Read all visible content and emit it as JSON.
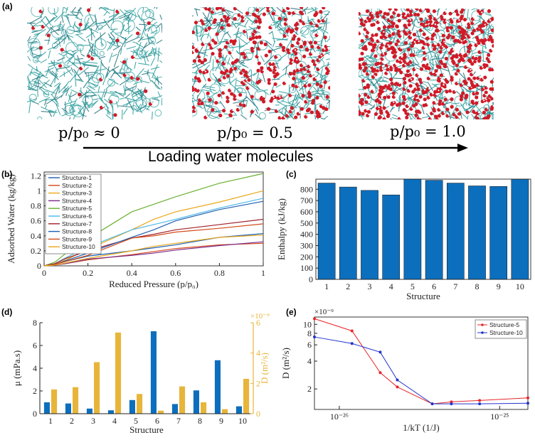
{
  "figure": {
    "panel_a": {
      "label": "(a)",
      "snapshots": [
        {
          "label": "p/p₀ ≈ 0",
          "water_level": 0.04
        },
        {
          "label": "p/p₀  = 0.5",
          "water_level": 0.45
        },
        {
          "label": "p/p₀  = 1.0",
          "water_level": 0.85
        }
      ],
      "arrow_label": "Loading water molecules"
    },
    "colors": {
      "framework": "#2a9d9c",
      "water_o": "#d01a28",
      "water_h": "#f3f3f3",
      "bar_blue": "#0c6fbd",
      "bar_gold": "#e8b53a",
      "red": "#e8262a",
      "blue": "#2233cc"
    }
  },
  "chart_data": [
    {
      "panel": "(b)",
      "type": "line",
      "xlabel": "Reduced Pressure (p/p₀)",
      "ylabel": "Adsorbed Water (kg/kg)",
      "xlim": [
        0,
        1
      ],
      "ylim": [
        0,
        1.25
      ],
      "xticks": [
        "0",
        "0.2",
        "0.4",
        "0.6",
        "0.8",
        "1"
      ],
      "yticks": [
        "0",
        "0.2",
        "0.4",
        "0.6",
        "0.8",
        "1",
        "1.2"
      ],
      "legend_position": "top-left",
      "x": [
        0,
        0.05,
        0.1,
        0.2,
        0.4,
        0.5,
        0.6,
        0.8,
        1.0
      ],
      "series": [
        {
          "name": "Structure-1",
          "color": "#1f5fb0",
          "values": [
            0,
            0.02,
            0.06,
            0.13,
            0.2,
            0.24,
            0.28,
            0.38,
            0.43
          ]
        },
        {
          "name": "Structure-2",
          "color": "#d24a1a",
          "values": [
            0,
            0.01,
            0.03,
            0.08,
            0.15,
            0.19,
            0.23,
            0.28,
            0.3
          ]
        },
        {
          "name": "Structure-3",
          "color": "#e8a81a",
          "values": [
            0,
            0.02,
            0.08,
            0.22,
            0.48,
            0.62,
            0.72,
            0.85,
            1.0
          ]
        },
        {
          "name": "Structure-4",
          "color": "#7b2a8b",
          "values": [
            0,
            0.01,
            0.03,
            0.09,
            0.14,
            0.17,
            0.21,
            0.27,
            0.32
          ]
        },
        {
          "name": "Structure-5",
          "color": "#6ab030",
          "values": [
            0,
            0.05,
            0.17,
            0.36,
            0.72,
            0.82,
            0.92,
            1.1,
            1.23
          ]
        },
        {
          "name": "Structure-6",
          "color": "#4db8e8",
          "values": [
            0,
            0.03,
            0.11,
            0.25,
            0.48,
            0.55,
            0.62,
            0.77,
            0.9
          ]
        },
        {
          "name": "Structure-7",
          "color": "#a0202a",
          "values": [
            0,
            0.03,
            0.1,
            0.2,
            0.37,
            0.42,
            0.48,
            0.55,
            0.62
          ]
        },
        {
          "name": "Structure-8",
          "color": "#1f5fb0",
          "values": [
            0,
            0.02,
            0.07,
            0.17,
            0.38,
            0.48,
            0.6,
            0.75,
            0.86
          ]
        },
        {
          "name": "Structure-9",
          "color": "#d24a1a",
          "values": [
            0,
            0.02,
            0.06,
            0.14,
            0.37,
            0.4,
            0.45,
            0.5,
            0.56
          ]
        },
        {
          "name": "Structure-10",
          "color": "#e8a81a",
          "values": [
            0,
            0.01,
            0.04,
            0.1,
            0.2,
            0.26,
            0.3,
            0.38,
            0.41
          ]
        }
      ]
    },
    {
      "panel": "(c)",
      "type": "bar",
      "xlabel": "Structure",
      "ylabel": "Enthalpy (kJ/kg)",
      "categories": [
        "1",
        "2",
        "3",
        "4",
        "5",
        "6",
        "7",
        "8",
        "9",
        "10"
      ],
      "values": [
        855,
        820,
        790,
        750,
        890,
        880,
        855,
        830,
        825,
        890
      ],
      "ylim": [
        0,
        890
      ],
      "yticks": [
        "0",
        "100",
        "200",
        "300",
        "400",
        "500",
        "600",
        "700",
        "800"
      ],
      "color": "#0c6fbd"
    },
    {
      "panel": "(d)",
      "type": "bar",
      "xlabel": "Structure",
      "ylabel_left": "μ (mPa.s)",
      "ylabel_right": "D (m²/s)",
      "right_exponent": "×10⁻⁹",
      "categories": [
        "1",
        "2",
        "3",
        "4",
        "5",
        "6",
        "7",
        "8",
        "9",
        "10"
      ],
      "ylim_left": [
        0,
        8
      ],
      "ylim_right": [
        0,
        6
      ],
      "yticks_left": [
        "0",
        "2",
        "4",
        "6",
        "8"
      ],
      "yticks_right": [
        "0",
        "2",
        "4",
        "6"
      ],
      "series": [
        {
          "name": "μ",
          "axis": "left",
          "color": "#0c6fbd",
          "values": [
            1.0,
            0.9,
            0.45,
            0.3,
            1.2,
            7.25,
            0.85,
            2.05,
            4.7,
            0.65
          ]
        },
        {
          "name": "D",
          "axis": "right",
          "color": "#e8b53a",
          "values": [
            1.6,
            1.75,
            3.4,
            5.35,
            1.3,
            0.2,
            1.8,
            0.75,
            0.3,
            2.3
          ]
        }
      ]
    },
    {
      "panel": "(e)",
      "type": "line",
      "xlabel": "1/kT (1/J)",
      "ylabel": "D (m²/s)",
      "y_exponent": "×10⁻⁹",
      "xscale": "log",
      "yscale": "log",
      "xlim": [
        7e-27,
        1.5e-25
      ],
      "ylim": [
        1.2,
        12
      ],
      "xticks": [
        "10⁻²⁶",
        "10⁻²⁵"
      ],
      "yticks": [
        "2",
        "4",
        "6",
        "8",
        "10"
      ],
      "legend_position": "top-right",
      "x": [
        7e-27,
        1.2e-26,
        1.8e-26,
        2.3e-26,
        3.8e-26,
        5e-26,
        7.5e-26,
        1.5e-25
      ],
      "series": [
        {
          "name": "Structure-5",
          "color": "#e8262a",
          "values": [
            11.5,
            8.5,
            3.0,
            2.1,
            1.38,
            1.45,
            1.5,
            1.6
          ]
        },
        {
          "name": "Structure-10",
          "color": "#2233cc",
          "values": [
            7.3,
            6.2,
            5.0,
            2.5,
            1.38,
            1.38,
            1.38,
            1.4
          ]
        }
      ]
    }
  ]
}
